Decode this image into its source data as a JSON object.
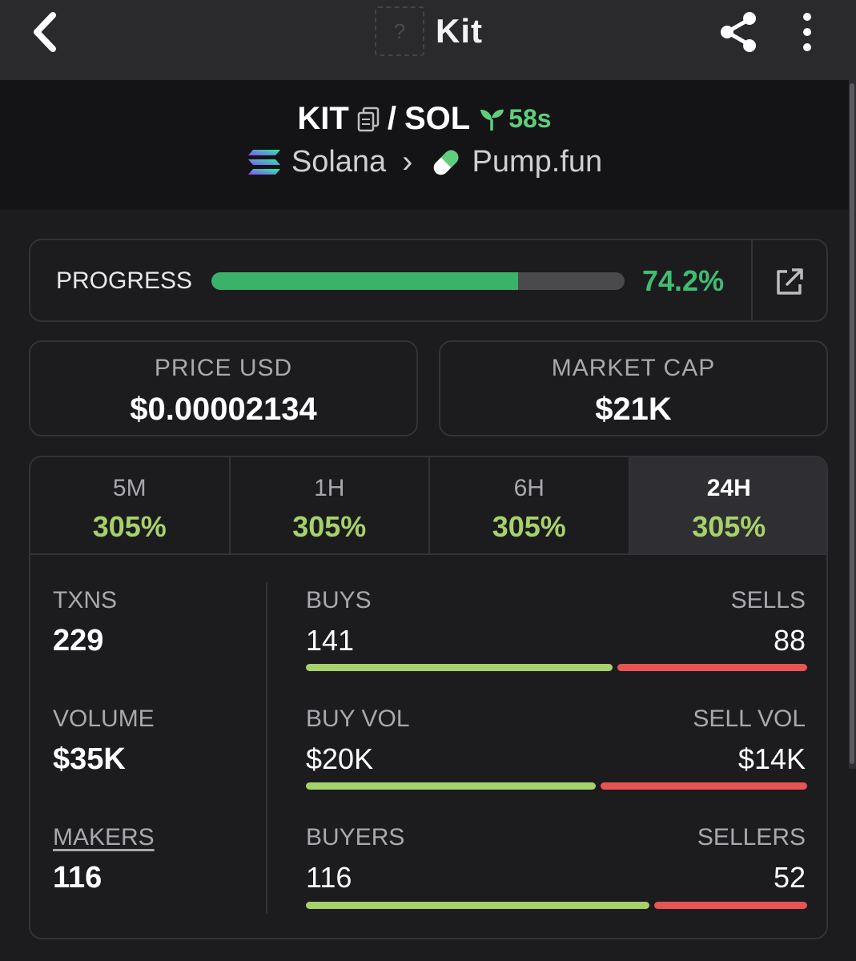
{
  "header": {
    "title": "Kit",
    "token_placeholder_glyph": "?",
    "icons": [
      "back-icon",
      "share-icon",
      "more-vertical-icon"
    ]
  },
  "pair": {
    "base": "KIT",
    "quote": "SOL",
    "separator": "/",
    "age": "58s",
    "chain": "Solana",
    "dex": "Pump.fun",
    "breadcrumb_separator": "›"
  },
  "progress": {
    "label": "PROGRESS",
    "value_text": "74.2%",
    "fraction": 0.742,
    "color": "#3ab26a"
  },
  "stats": {
    "price_usd": {
      "label": "PRICE USD",
      "value": "$0.00002134"
    },
    "market_cap": {
      "label": "MARKET CAP",
      "value": "$21K"
    }
  },
  "timeframes": [
    {
      "label": "5M",
      "change": "305%"
    },
    {
      "label": "1H",
      "change": "305%"
    },
    {
      "label": "6H",
      "change": "305%"
    },
    {
      "label": "24H",
      "change": "305%"
    }
  ],
  "active_timeframe": "24H",
  "metrics": {
    "txns": {
      "label": "TXNS",
      "value": "229"
    },
    "volume": {
      "label": "VOLUME",
      "value": "$35K"
    },
    "makers": {
      "label": "MAKERS",
      "value": "116"
    }
  },
  "splits": {
    "txns": {
      "buy_label": "BUYS",
      "sell_label": "SELLS",
      "buy_value": "141",
      "sell_value": "88",
      "buy_share": 0.616
    },
    "volume": {
      "buy_label": "BUY VOL",
      "sell_label": "SELL VOL",
      "buy_value": "$20K",
      "sell_value": "$14K",
      "buy_share": 0.583
    },
    "makers": {
      "buy_label": "BUYERS",
      "sell_label": "SELLERS",
      "buy_value": "116",
      "sell_value": "52",
      "buy_share": 0.69
    }
  },
  "colors": {
    "positive": "#a6d26a",
    "negative": "#e85454",
    "accent_green": "#3fbe70",
    "background": "#1c1c1f"
  }
}
